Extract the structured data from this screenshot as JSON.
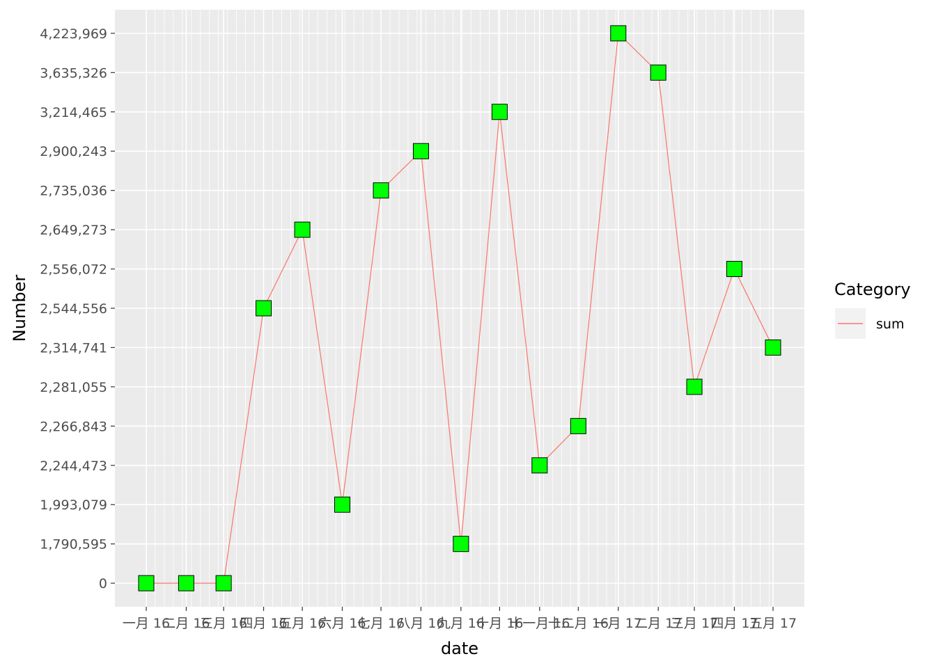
{
  "chart_data": {
    "type": "line",
    "xlabel": "date",
    "ylabel": "Number",
    "x_tick_labels": [
      "一月 16",
      "二月 16",
      "三月 16",
      "四月 16",
      "五月 16",
      "六月 16",
      "七月 16",
      "八月 16",
      "九月 16",
      "十月 16",
      "十一月 16",
      "十二月 16",
      "一月 17",
      "二月 17",
      "三月 17",
      "四月 17",
      "五月 17"
    ],
    "y_tick_labels": [
      "0",
      "1,790,595",
      "1,993,079",
      "2,244,473",
      "2,266,843",
      "2,281,055",
      "2,314,741",
      "2,544,556",
      "2,556,072",
      "2,649,273",
      "2,735,036",
      "2,900,243",
      "3,214,465",
      "3,635,326",
      "4,223,969"
    ],
    "y_scale": "discrete (each distinct value gets one evenly spaced level)",
    "series": [
      {
        "name": "sum",
        "values": [
          0,
          0,
          0,
          2544556,
          2649273,
          1993079,
          2735036,
          2900243,
          1790595,
          3214465,
          2244473,
          2266843,
          4223969,
          3635326,
          2281055,
          2556072,
          2314741
        ]
      }
    ],
    "legend": {
      "title": "Category",
      "position": "right"
    },
    "grid": true,
    "colors": {
      "panel_background": "#EBEBEB",
      "grid_line": "#FFFFFF",
      "series_line": "#F8766D",
      "marker_fill": "#00FF00",
      "marker_stroke": "#000000",
      "legend_key_background": "#F2F2F2"
    }
  }
}
